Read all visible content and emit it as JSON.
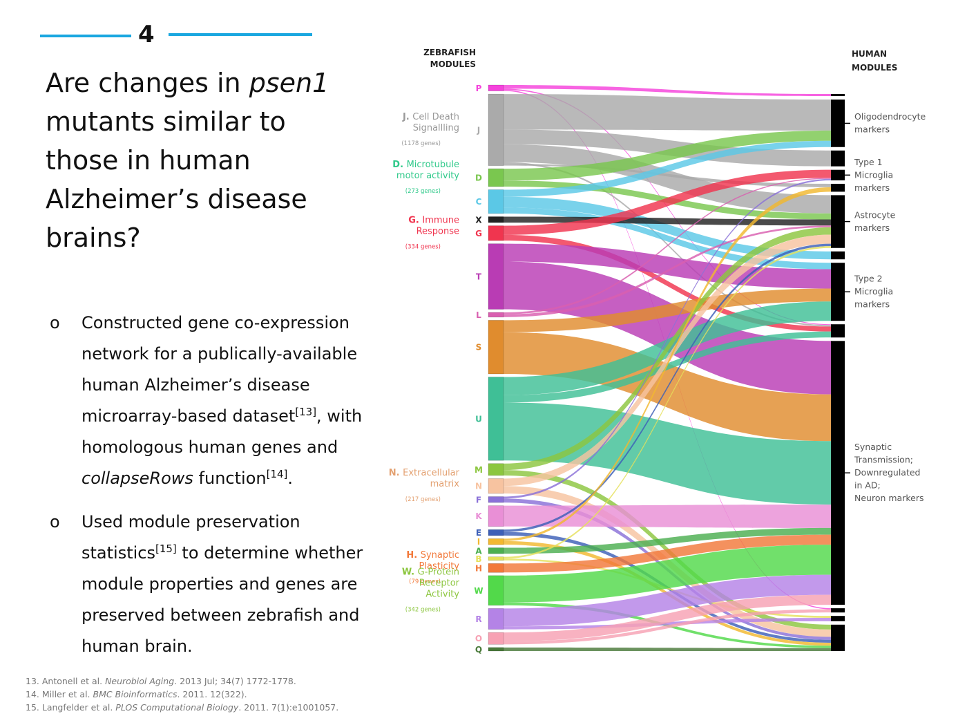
{
  "slide": {
    "number": "4",
    "title_parts": [
      "Are changes in ",
      "psen1",
      " mutants similar to those in human Alzheimer’s disease brains?"
    ]
  },
  "bullets": [
    {
      "marker": "o",
      "parts": [
        {
          "t": "Constructed gene co-expression network for a publically-available human Alzheimer’s disease microarray-based dataset",
          "s": "n"
        },
        {
          "t": "[13]",
          "s": "sup"
        },
        {
          "t": ", with homologous human genes and ",
          "s": "n"
        },
        {
          "t": "collapseRows",
          "s": "i"
        },
        {
          "t": " function",
          "s": "n"
        },
        {
          "t": "[14]",
          "s": "sup"
        },
        {
          "t": ".",
          "s": "n"
        }
      ]
    },
    {
      "marker": "o",
      "parts": [
        {
          "t": "Used module preservation statistics",
          "s": "n"
        },
        {
          "t": "[15]",
          "s": "sup"
        },
        {
          "t": " to determine whether module properties and genes are preserved between zebrafish and human brain.",
          "s": "n"
        }
      ]
    }
  ],
  "references": [
    [
      {
        "t": "13. Antonell et al. ",
        "s": "n"
      },
      {
        "t": "Neurobiol Aging",
        "s": "i"
      },
      {
        "t": ". 2013 Jul; 34(7) 1772-1778.",
        "s": "n"
      }
    ],
    [
      {
        "t": "14.  Miller et al. ",
        "s": "n"
      },
      {
        "t": "BMC Bioinformatics",
        "s": "i"
      },
      {
        "t": ". 2011. 12(322).",
        "s": "n"
      }
    ],
    [
      {
        "t": "15. Langfelder et al. ",
        "s": "n"
      },
      {
        "t": "PLOS Computational Biology",
        "s": "i"
      },
      {
        "t": ". 2011. 7(1):e1001057.",
        "s": "n"
      }
    ]
  ],
  "diagram": {
    "left_header": [
      "ZEBRAFISH",
      "MODULES"
    ],
    "right_header": [
      "HUMAN",
      "MODULES"
    ],
    "zebrafish_modules": [
      {
        "letter": "P",
        "color": "#f542dc",
        "weight": 1
      },
      {
        "letter": "J",
        "color": "#aaaaaa",
        "weight": 12
      },
      {
        "letter": "D",
        "color": "#7ac74f",
        "weight": 3
      },
      {
        "letter": "C",
        "color": "#5bc8e6",
        "weight": 4
      },
      {
        "letter": "X",
        "color": "#222222",
        "weight": 1
      },
      {
        "letter": "G",
        "color": "#f0354f",
        "weight": 2.5
      },
      {
        "letter": "T",
        "color": "#b93cb4",
        "weight": 11
      },
      {
        "letter": "L",
        "color": "#d95fb0",
        "weight": 0.8
      },
      {
        "letter": "S",
        "color": "#e08c2e",
        "weight": 9
      },
      {
        "letter": "U",
        "color": "#3fbf96",
        "weight": 14
      },
      {
        "letter": "M",
        "color": "#8cc63f",
        "weight": 2
      },
      {
        "letter": "N",
        "color": "#f7c3a0",
        "weight": 2.5
      },
      {
        "letter": "F",
        "color": "#8a70d8",
        "weight": 1
      },
      {
        "letter": "K",
        "color": "#e98fd6",
        "weight": 3.5
      },
      {
        "letter": "E",
        "color": "#3d5fb7",
        "weight": 1
      },
      {
        "letter": "I",
        "color": "#f2b830",
        "weight": 1
      },
      {
        "letter": "A",
        "color": "#4caf50",
        "weight": 1
      },
      {
        "letter": "B",
        "color": "#e5e05a",
        "weight": 0.6
      },
      {
        "letter": "H",
        "color": "#f2793a",
        "weight": 1.5
      },
      {
        "letter": "W",
        "color": "#52d94a",
        "weight": 5
      },
      {
        "letter": "R",
        "color": "#b483e6",
        "weight": 3.5
      },
      {
        "letter": "O",
        "color": "#f7a1b3",
        "weight": 2
      },
      {
        "letter": "Q",
        "color": "#4a7a3a",
        "weight": 0.6
      }
    ],
    "zebrafish_labels": [
      {
        "prefix": "J.",
        "name": [
          "Cell Death",
          "Signallling"
        ],
        "genes": "(1178 genes)",
        "color": "#999999",
        "anchor": "J"
      },
      {
        "prefix": "D.",
        "name": [
          "Microtubule",
          "motor activity"
        ],
        "genes": "(273 genes)",
        "color": "#2fc98a",
        "anchor": "D"
      },
      {
        "prefix": "G.",
        "name": [
          "Immune",
          "Response"
        ],
        "genes": "(334 genes)",
        "color": "#f0354f",
        "anchor": "G"
      },
      {
        "prefix": "N.",
        "name": [
          "Extracellular",
          "matrix"
        ],
        "genes": "(217 genes)",
        "color": "#e3a070",
        "anchor": "N"
      },
      {
        "prefix": "H.",
        "name": [
          "Synaptic",
          "Plasticity"
        ],
        "genes": "(79 genes)",
        "color": "#f2793a",
        "anchor": "H"
      },
      {
        "prefix": "W.",
        "name": [
          "G-Protein",
          "Receptor",
          "Activity"
        ],
        "genes": "(342 genes)",
        "color": "#8cc63f",
        "anchor": "W"
      }
    ],
    "human_modules": [
      {
        "id": "h1",
        "weight": 0.4
      },
      {
        "id": "oligo",
        "weight": 9
      },
      {
        "id": "h3",
        "weight": 3
      },
      {
        "id": "h4",
        "weight": 2
      },
      {
        "id": "h5",
        "weight": 1.5
      },
      {
        "id": "astro",
        "weight": 10
      },
      {
        "id": "h7",
        "weight": 1.5
      },
      {
        "id": "micro2a",
        "weight": 11
      },
      {
        "id": "micro2b",
        "weight": 2.5
      },
      {
        "id": "synaptic",
        "weight": 50
      },
      {
        "id": "h11",
        "weight": 0.8
      },
      {
        "id": "h12",
        "weight": 1
      },
      {
        "id": "h13",
        "weight": 5
      }
    ],
    "human_labels": [
      {
        "lines": [
          "Oligodendrocyte",
          "markers"
        ],
        "bracket": "oligo"
      },
      {
        "lines": [
          "Type 1",
          "Microglia",
          "markers"
        ],
        "bracket": "h4"
      },
      {
        "lines": [
          "Astrocyte",
          "markers"
        ],
        "bracket": "astro"
      },
      {
        "lines": [
          "Type 2",
          "Microglia",
          "markers"
        ],
        "bracket": "micro2a"
      },
      {
        "lines": [
          "Synaptic",
          "Transmission;",
          "Downregulated",
          "in AD;",
          "Neuron markers"
        ],
        "bracket": "synaptic"
      }
    ],
    "flows": [
      [
        "P",
        "h1",
        0.5
      ],
      [
        "P",
        "micro2b",
        0.15
      ],
      [
        "P",
        "h11",
        0.15
      ],
      [
        "J",
        "oligo",
        6
      ],
      [
        "J",
        "h3",
        2.5
      ],
      [
        "J",
        "astro",
        3
      ],
      [
        "J",
        "micro2b",
        0.3
      ],
      [
        "J",
        "h5",
        0.3
      ],
      [
        "D",
        "oligo",
        2
      ],
      [
        "D",
        "astro",
        1
      ],
      [
        "C",
        "oligo",
        1.2
      ],
      [
        "C",
        "h7",
        1.8
      ],
      [
        "C",
        "micro2a",
        1
      ],
      [
        "X",
        "astro",
        1
      ],
      [
        "G",
        "h4",
        1.6
      ],
      [
        "G",
        "micro2b",
        1
      ],
      [
        "T",
        "micro2a",
        3
      ],
      [
        "T",
        "synaptic",
        8
      ],
      [
        "L",
        "h4",
        0.2
      ],
      [
        "L",
        "astro",
        0.3
      ],
      [
        "S",
        "micro2a",
        2
      ],
      [
        "S",
        "synaptic",
        7
      ],
      [
        "U",
        "micro2a",
        3
      ],
      [
        "U",
        "micro2b",
        1.2
      ],
      [
        "U",
        "synaptic",
        9.5
      ],
      [
        "M",
        "astro",
        1.2
      ],
      [
        "M",
        "h13",
        1
      ],
      [
        "N",
        "astro",
        1.5
      ],
      [
        "N",
        "h13",
        1.5
      ],
      [
        "F",
        "h4",
        0.3
      ],
      [
        "F",
        "h13",
        0.6
      ],
      [
        "K",
        "synaptic",
        3.5
      ],
      [
        "E",
        "astro",
        0.4
      ],
      [
        "E",
        "h13",
        0.6
      ],
      [
        "I",
        "h5",
        0.4
      ],
      [
        "I",
        "h13",
        0.6
      ],
      [
        "A",
        "synaptic",
        1
      ],
      [
        "B",
        "astro",
        0.3
      ],
      [
        "B",
        "h12",
        0.3
      ],
      [
        "H",
        "synaptic",
        1.5
      ],
      [
        "W",
        "synaptic",
        4.5
      ],
      [
        "W",
        "h13",
        0.5
      ],
      [
        "R",
        "synaptic",
        3
      ],
      [
        "R",
        "h12",
        0.5
      ],
      [
        "O",
        "synaptic",
        1.5
      ],
      [
        "O",
        "h11",
        0.5
      ],
      [
        "Q",
        "h13",
        0.6
      ]
    ]
  }
}
